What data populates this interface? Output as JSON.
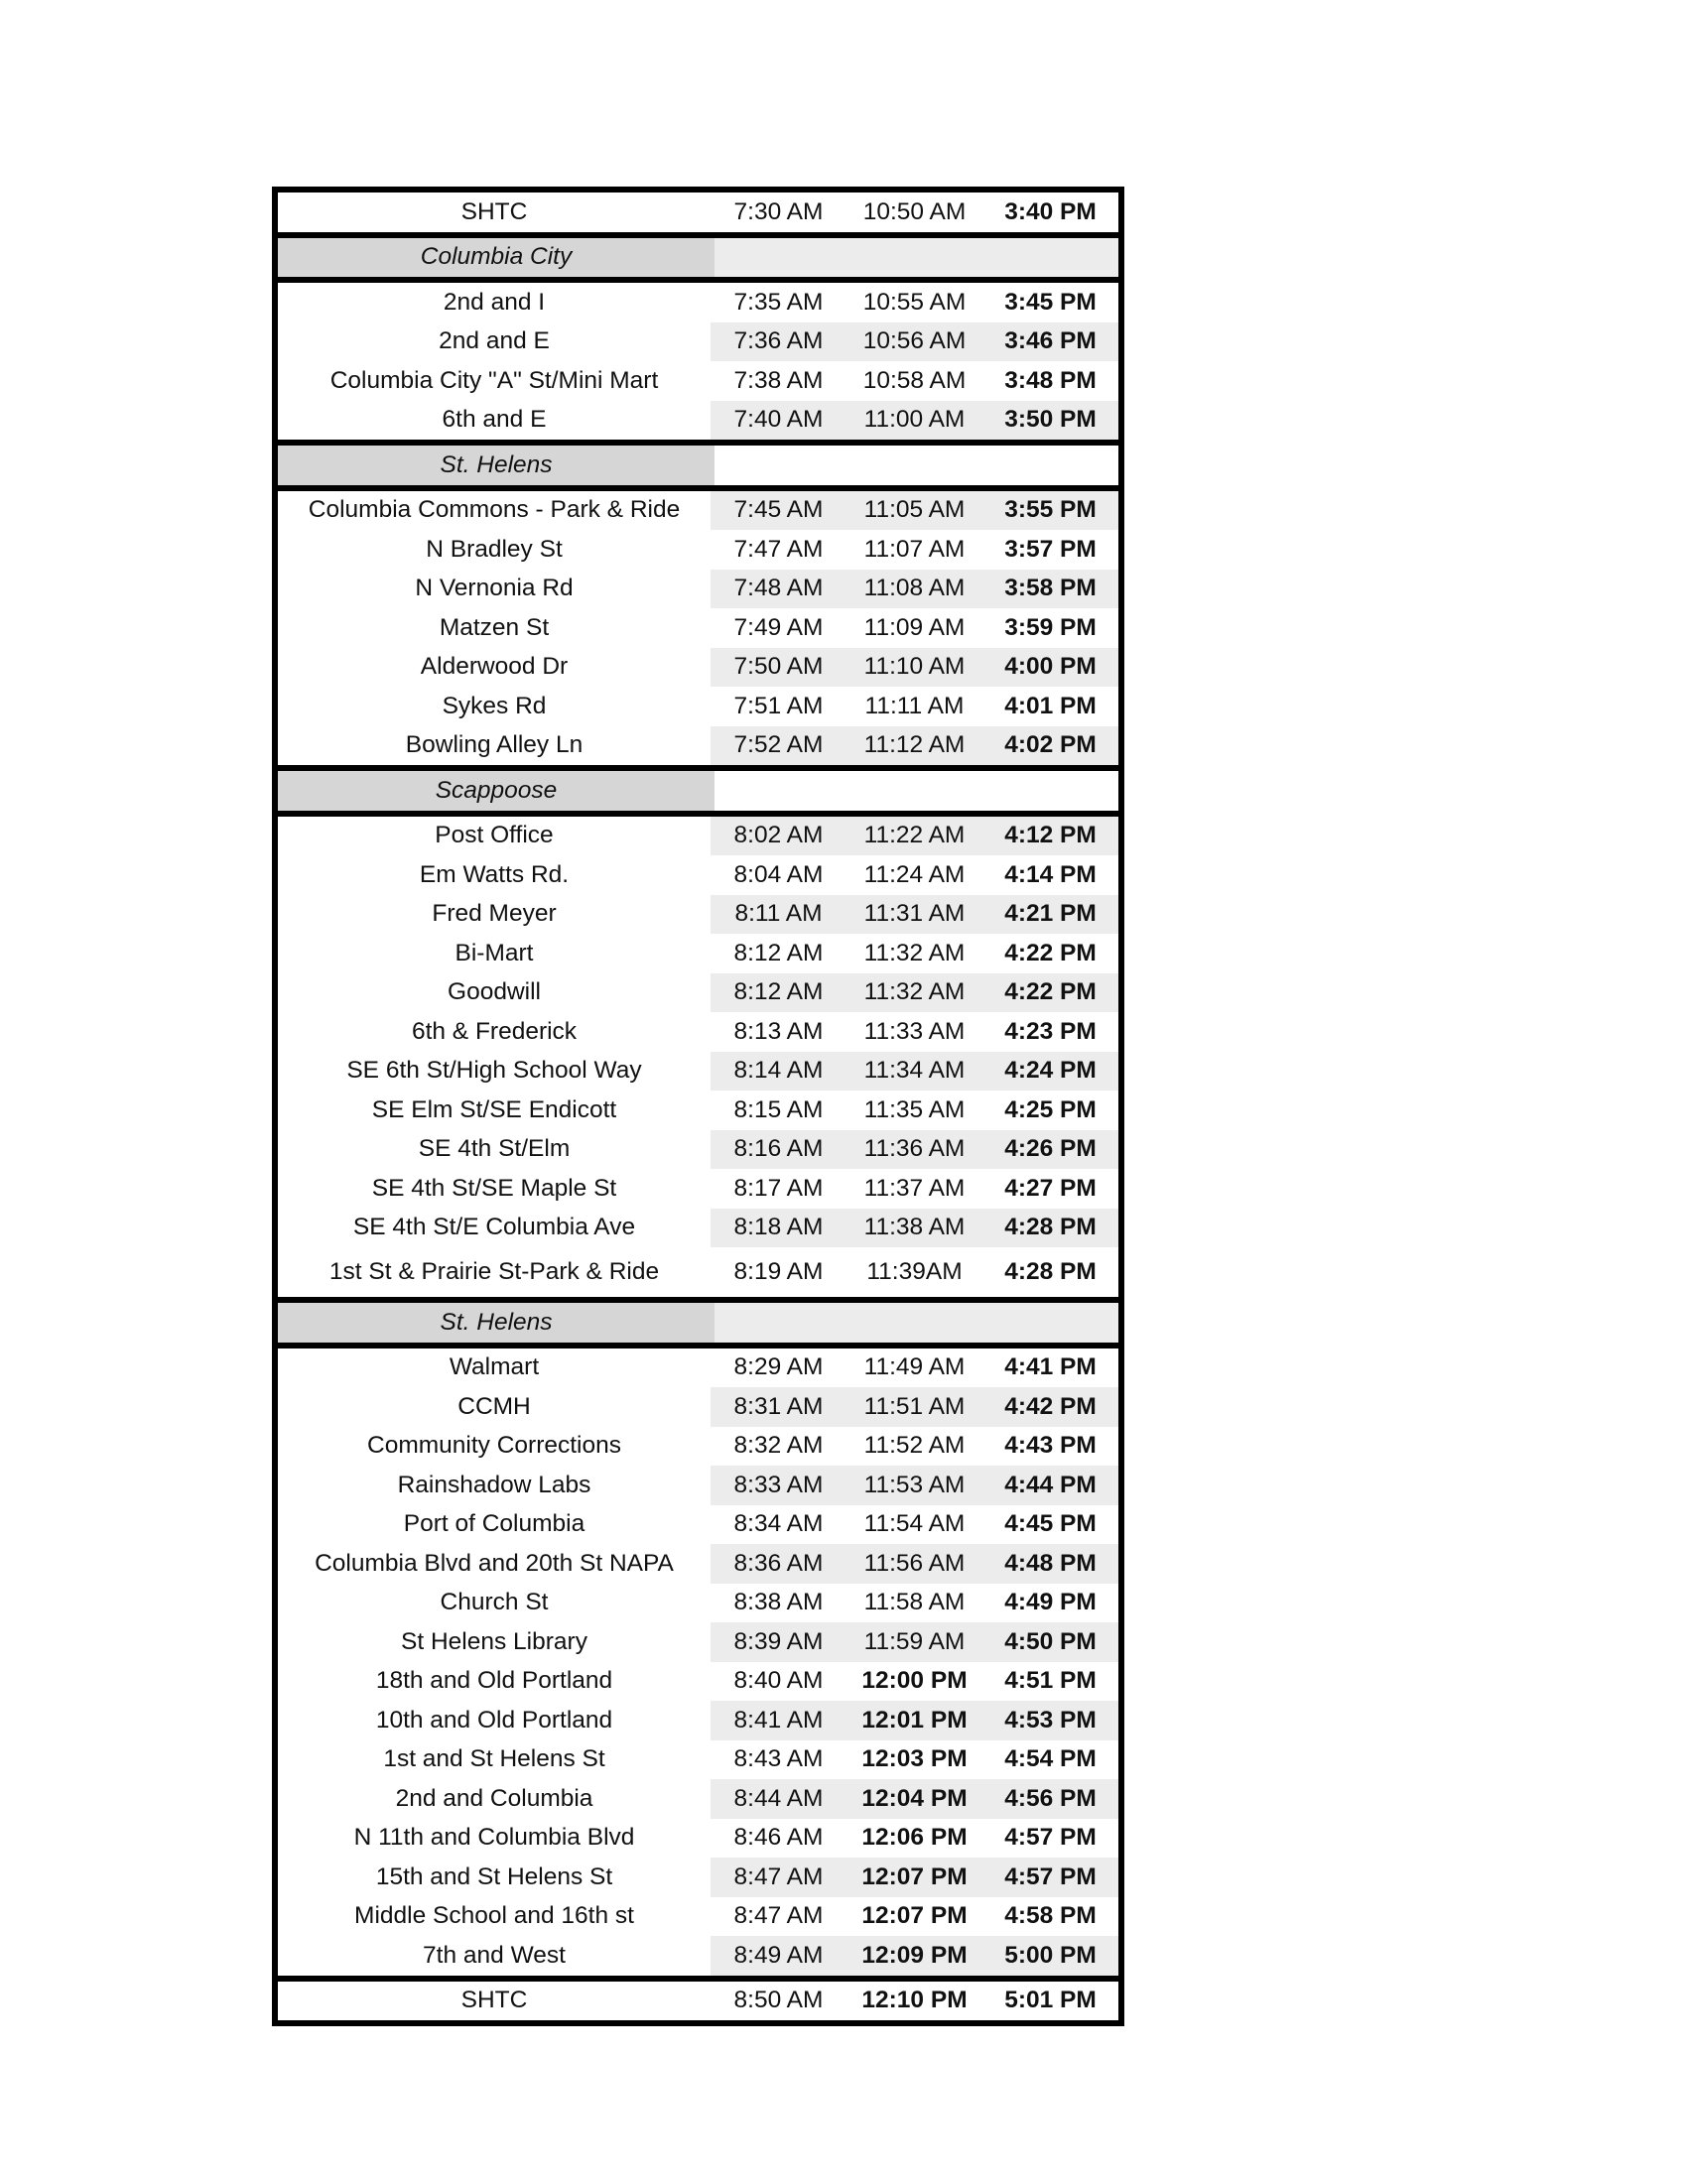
{
  "schedule": {
    "groups": [
      {
        "rows": [
          {
            "stop": "SHTC",
            "times": [
              "7:30 AM",
              "10:50 AM",
              "3:40 PM"
            ]
          }
        ]
      },
      {
        "header": "Columbia City",
        "rows": [
          {
            "stop": "2nd and I",
            "times": [
              "7:35 AM",
              "10:55 AM",
              "3:45 PM"
            ]
          },
          {
            "stop": "2nd and E",
            "times": [
              "7:36 AM",
              "10:56 AM",
              "3:46 PM"
            ]
          },
          {
            "stop": "Columbia City \"A\" St/Mini Mart",
            "times": [
              "7:38 AM",
              "10:58 AM",
              "3:48 PM"
            ]
          },
          {
            "stop": "6th and E",
            "times": [
              "7:40 AM",
              "11:00 AM",
              "3:50 PM"
            ]
          }
        ]
      },
      {
        "header": "St. Helens",
        "rows": [
          {
            "stop": "Columbia Commons - Park & Ride",
            "times": [
              "7:45 AM",
              "11:05 AM",
              "3:55 PM"
            ]
          },
          {
            "stop": "N Bradley St",
            "times": [
              "7:47 AM",
              "11:07 AM",
              "3:57 PM"
            ]
          },
          {
            "stop": "N Vernonia Rd",
            "times": [
              "7:48 AM",
              "11:08 AM",
              "3:58 PM"
            ]
          },
          {
            "stop": "Matzen St",
            "times": [
              "7:49 AM",
              "11:09 AM",
              "3:59 PM"
            ]
          },
          {
            "stop": "Alderwood Dr",
            "times": [
              "7:50 AM",
              "11:10 AM",
              "4:00 PM"
            ]
          },
          {
            "stop": "Sykes Rd",
            "times": [
              "7:51 AM",
              "11:11 AM",
              "4:01 PM"
            ]
          },
          {
            "stop": "Bowling Alley Ln",
            "times": [
              "7:52 AM",
              "11:12 AM",
              "4:02 PM"
            ]
          }
        ]
      },
      {
        "header": "Scappoose",
        "rows": [
          {
            "stop": "Post Office",
            "times": [
              "8:02 AM",
              "11:22 AM",
              "4:12 PM"
            ]
          },
          {
            "stop": "Em Watts Rd.",
            "times": [
              "8:04 AM",
              "11:24 AM",
              "4:14 PM"
            ]
          },
          {
            "stop": "Fred Meyer",
            "times": [
              "8:11 AM",
              "11:31 AM",
              "4:21 PM"
            ]
          },
          {
            "stop": "Bi-Mart",
            "times": [
              "8:12 AM",
              "11:32 AM",
              "4:22 PM"
            ]
          },
          {
            "stop": "Goodwill",
            "times": [
              "8:12 AM",
              "11:32 AM",
              "4:22 PM"
            ]
          },
          {
            "stop": "6th & Frederick",
            "times": [
              "8:13 AM",
              "11:33 AM",
              "4:23 PM"
            ]
          },
          {
            "stop": "SE 6th St/High School Way",
            "times": [
              "8:14 AM",
              "11:34 AM",
              "4:24 PM"
            ]
          },
          {
            "stop": "SE Elm St/SE Endicott",
            "times": [
              "8:15 AM",
              "11:35 AM",
              "4:25 PM"
            ]
          },
          {
            "stop": "SE 4th St/Elm",
            "times": [
              "8:16 AM",
              "11:36 AM",
              "4:26 PM"
            ]
          },
          {
            "stop": "SE 4th St/SE Maple St",
            "times": [
              "8:17 AM",
              "11:37 AM",
              "4:27 PM"
            ]
          },
          {
            "stop": "SE 4th St/E Columbia Ave",
            "times": [
              "8:18 AM",
              "11:38 AM",
              "4:28 PM"
            ]
          },
          {
            "stop": "1st St & Prairie St-Park & Ride",
            "times": [
              "8:19 AM",
              "11:39AM",
              "4:28 PM"
            ]
          }
        ]
      },
      {
        "header": "St. Helens",
        "rows": [
          {
            "stop": "Walmart",
            "times": [
              "8:29 AM",
              "11:49 AM",
              "4:41 PM"
            ]
          },
          {
            "stop": "CCMH",
            "times": [
              "8:31 AM",
              "11:51 AM",
              "4:42 PM"
            ]
          },
          {
            "stop": "Community Corrections",
            "times": [
              "8:32 AM",
              "11:52 AM",
              "4:43 PM"
            ]
          },
          {
            "stop": "Rainshadow Labs",
            "times": [
              "8:33 AM",
              "11:53 AM",
              "4:44 PM"
            ]
          },
          {
            "stop": "Port of Columbia",
            "times": [
              "8:34 AM",
              "11:54 AM",
              "4:45 PM"
            ]
          },
          {
            "stop": "Columbia Blvd and 20th St NAPA",
            "times": [
              "8:36 AM",
              "11:56 AM",
              "4:48 PM"
            ]
          },
          {
            "stop": "Church St",
            "times": [
              "8:38 AM",
              "11:58 AM",
              "4:49 PM"
            ]
          },
          {
            "stop": "St Helens Library",
            "times": [
              "8:39 AM",
              "11:59 AM",
              "4:50 PM"
            ]
          },
          {
            "stop": "18th and Old Portland",
            "times": [
              "8:40 AM",
              "12:00 PM",
              "4:51 PM"
            ]
          },
          {
            "stop": "10th and Old Portland",
            "times": [
              "8:41 AM",
              "12:01 PM",
              "4:53 PM"
            ]
          },
          {
            "stop": "1st and St Helens St",
            "times": [
              "8:43 AM",
              "12:03 PM",
              "4:54 PM"
            ]
          },
          {
            "stop": "2nd and Columbia",
            "times": [
              "8:44 AM",
              "12:04 PM",
              "4:56 PM"
            ]
          },
          {
            "stop": "N 11th and Columbia Blvd",
            "times": [
              "8:46 AM",
              "12:06 PM",
              "4:57 PM"
            ]
          },
          {
            "stop": "15th and St Helens St",
            "times": [
              "8:47 AM",
              "12:07 PM",
              "4:57 PM"
            ]
          },
          {
            "stop": "Middle School and 16th st",
            "times": [
              "8:47 AM",
              "12:07 PM",
              "4:58 PM"
            ]
          },
          {
            "stop": "7th and West",
            "times": [
              "8:49 AM",
              "12:09 PM",
              "5:00 PM"
            ]
          }
        ]
      },
      {
        "rows": [
          {
            "stop": "SHTC",
            "times": [
              "8:50 AM",
              "12:10 PM",
              "5:01 PM"
            ]
          }
        ]
      }
    ]
  }
}
